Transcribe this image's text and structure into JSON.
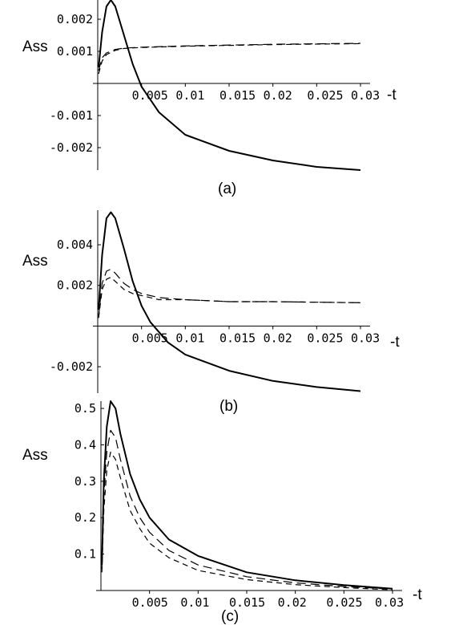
{
  "chart_data": [
    {
      "type": "line",
      "panel_label": "(a)",
      "ylabel": "Ass",
      "xlabel": "-t",
      "x_ticks": [
        "0.005",
        "0.01",
        "0.015",
        "0.02",
        "0.025",
        "0.03"
      ],
      "y_ticks": [
        "0.002",
        "0.001",
        "-0.001",
        "-0.002"
      ],
      "xlim": [
        0,
        0.03
      ],
      "ylim": [
        -0.0027,
        0.0026
      ],
      "series": [
        {
          "style": "solid",
          "x": [
            0.0001,
            0.0005,
            0.001,
            0.0015,
            0.002,
            0.003,
            0.004,
            0.005,
            0.007,
            0.01,
            0.015,
            0.02,
            0.025,
            0.03
          ],
          "values": [
            0.0005,
            0.0016,
            0.0024,
            0.0026,
            0.0024,
            0.0015,
            0.0006,
            -0.0001,
            -0.0009,
            -0.0016,
            -0.0021,
            -0.0024,
            -0.0026,
            -0.0027
          ]
        },
        {
          "style": "long-dash",
          "x": [
            0.0001,
            0.0005,
            0.001,
            0.002,
            0.003,
            0.005,
            0.01,
            0.02,
            0.03
          ],
          "values": [
            0.0004,
            0.0008,
            0.00095,
            0.00106,
            0.0011,
            0.00113,
            0.00117,
            0.00122,
            0.00125
          ]
        },
        {
          "style": "short-dash",
          "x": [
            0.0001,
            0.0005,
            0.001,
            0.002,
            0.003,
            0.005,
            0.01,
            0.02,
            0.03
          ],
          "values": [
            0.0003,
            0.0007,
            0.0009,
            0.00103,
            0.00109,
            0.00112,
            0.00116,
            0.00121,
            0.00124
          ]
        }
      ]
    },
    {
      "type": "line",
      "panel_label": "(b)",
      "ylabel": "Ass",
      "xlabel": "-t",
      "x_ticks": [
        "0.005",
        "0.01",
        "0.015",
        "0.02",
        "0.025",
        "0.03"
      ],
      "y_ticks": [
        "0.004",
        "0.002",
        "-0.002"
      ],
      "xlim": [
        0,
        0.03
      ],
      "ylim": [
        -0.0033,
        0.0057
      ],
      "series": [
        {
          "style": "solid",
          "x": [
            0.0001,
            0.0005,
            0.001,
            0.0015,
            0.002,
            0.003,
            0.004,
            0.005,
            0.006,
            0.008,
            0.01,
            0.015,
            0.02,
            0.025,
            0.03
          ],
          "values": [
            0.0008,
            0.0035,
            0.0053,
            0.0056,
            0.0053,
            0.0038,
            0.0022,
            0.001,
            0.0002,
            -0.0008,
            -0.0014,
            -0.0022,
            -0.0027,
            -0.003,
            -0.0032
          ]
        },
        {
          "style": "long-dash",
          "x": [
            0.0001,
            0.0005,
            0.001,
            0.0015,
            0.002,
            0.003,
            0.004,
            0.005,
            0.007,
            0.01,
            0.015,
            0.02,
            0.03
          ],
          "values": [
            0.0005,
            0.0021,
            0.0027,
            0.0028,
            0.0026,
            0.0021,
            0.0018,
            0.0016,
            0.0014,
            0.0013,
            0.0012,
            0.0012,
            0.00115
          ]
        },
        {
          "style": "short-dash",
          "x": [
            0.0001,
            0.0005,
            0.001,
            0.0015,
            0.002,
            0.003,
            0.004,
            0.005,
            0.007,
            0.01,
            0.015,
            0.02,
            0.03
          ],
          "values": [
            0.0004,
            0.0018,
            0.0023,
            0.0024,
            0.0022,
            0.0018,
            0.0016,
            0.0015,
            0.0013,
            0.0013,
            0.0012,
            0.0012,
            0.00115
          ]
        }
      ]
    },
    {
      "type": "line",
      "panel_label": "(c)",
      "ylabel": "Ass",
      "xlabel": "-t",
      "x_ticks": [
        "0.005",
        "0.01",
        "0.015",
        "0.02",
        "0.025",
        "0.03"
      ],
      "y_ticks": [
        "0.5",
        "0.4",
        "0.3",
        "0.2",
        "0.1"
      ],
      "xlim": [
        0,
        0.03
      ],
      "ylim": [
        0,
        0.52
      ],
      "series": [
        {
          "style": "solid",
          "x": [
            0.0001,
            0.0003,
            0.0006,
            0.001,
            0.0015,
            0.002,
            0.003,
            0.004,
            0.005,
            0.007,
            0.01,
            0.015,
            0.02,
            0.025,
            0.03
          ],
          "values": [
            0.07,
            0.3,
            0.45,
            0.52,
            0.5,
            0.43,
            0.32,
            0.25,
            0.2,
            0.14,
            0.095,
            0.05,
            0.028,
            0.015,
            0.005
          ]
        },
        {
          "style": "long-dash",
          "x": [
            0.0001,
            0.0003,
            0.0006,
            0.001,
            0.0015,
            0.002,
            0.003,
            0.004,
            0.005,
            0.007,
            0.01,
            0.015,
            0.02,
            0.025,
            0.03
          ],
          "values": [
            0.06,
            0.26,
            0.38,
            0.44,
            0.42,
            0.36,
            0.26,
            0.2,
            0.16,
            0.11,
            0.07,
            0.038,
            0.021,
            0.011,
            0.004
          ]
        },
        {
          "style": "short-dash",
          "x": [
            0.0001,
            0.0003,
            0.0006,
            0.001,
            0.0015,
            0.002,
            0.003,
            0.004,
            0.005,
            0.007,
            0.01,
            0.015,
            0.02,
            0.025,
            0.03
          ],
          "values": [
            0.05,
            0.22,
            0.33,
            0.38,
            0.36,
            0.31,
            0.22,
            0.17,
            0.13,
            0.09,
            0.055,
            0.03,
            0.016,
            0.008,
            0.002
          ]
        }
      ]
    }
  ]
}
